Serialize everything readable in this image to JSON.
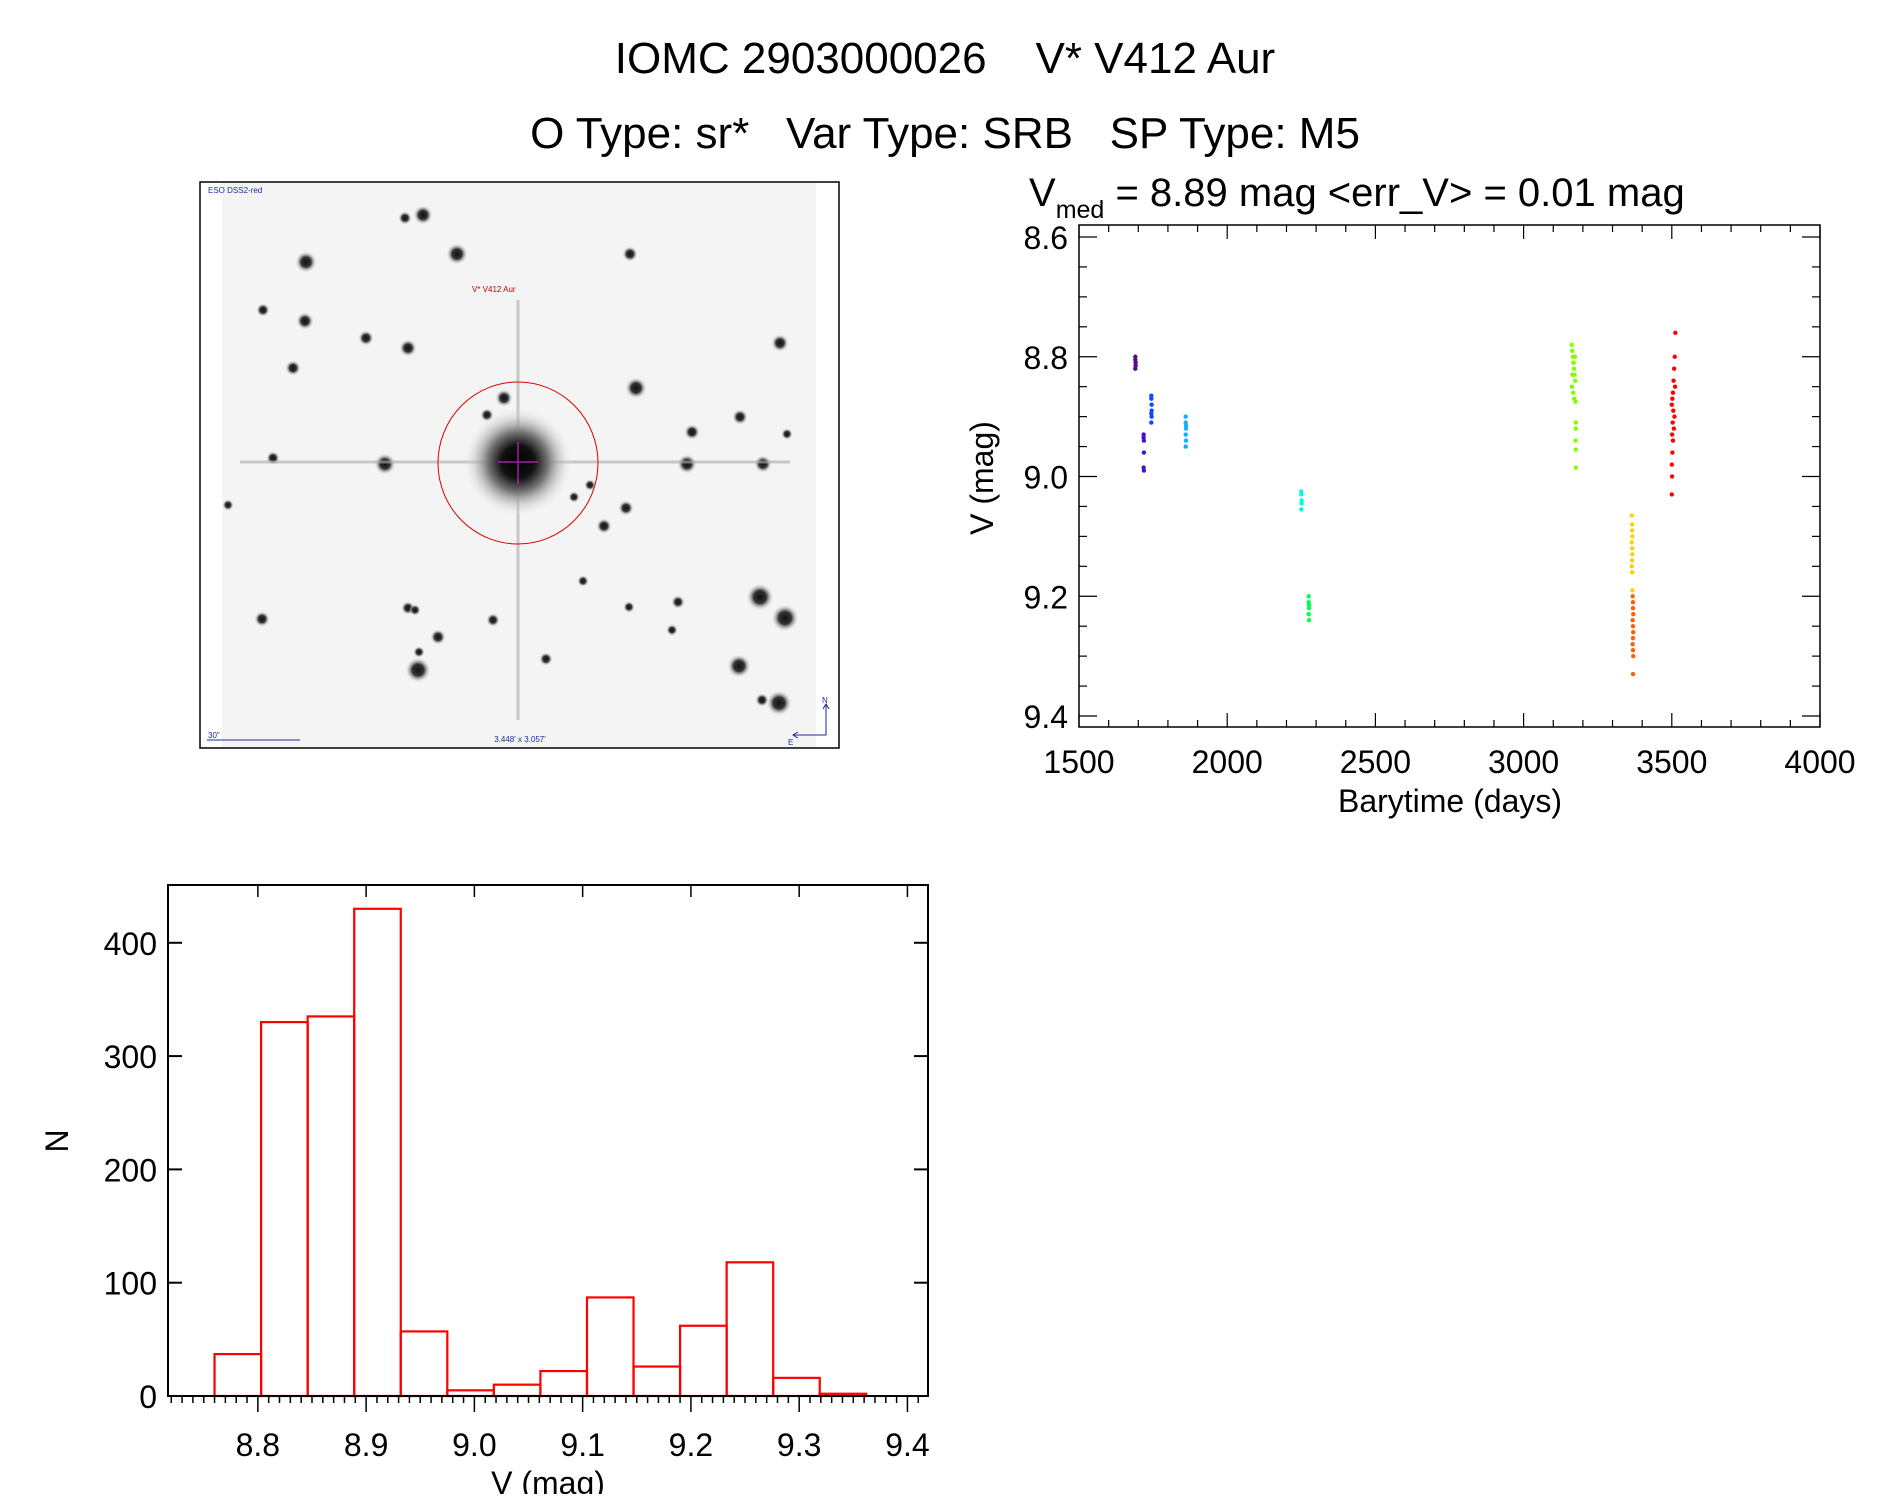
{
  "header": {
    "title_line1": "IOMC 2903000026    V* V412 Aur",
    "title_line2": "O Type: sr*   Var Type: SRB   SP Type: M5"
  },
  "image_panel": {
    "survey_label": "ESO DSS2-red",
    "target_label": "V* V412 Aur",
    "scale_label": "30\"",
    "field_size_label": "3.448' x 3.057'",
    "north_label": "N",
    "east_label": "E"
  },
  "chart_data": [
    {
      "type": "scatter",
      "title_prefix": "V",
      "title_subscript": "med",
      "title_rest": " = 8.89 mag <err_V> = 0.01 mag",
      "xlabel": "Barytime (days)",
      "ylabel": "V (mag)",
      "xlim": [
        1500,
        4000
      ],
      "ylim": [
        8.6,
        9.4
      ],
      "y_inverted": true,
      "xticks": [
        "1500",
        "2000",
        "2500",
        "3000",
        "3500",
        "4000"
      ],
      "yticks": [
        "8.6",
        "8.8",
        "9.0",
        "9.2",
        "9.4"
      ],
      "grid": false,
      "series": [
        {
          "color": "#5a0a82",
          "x": [
            1690,
            1690,
            1691,
            1691,
            1690
          ],
          "y": [
            8.8,
            8.805,
            8.81,
            8.815,
            8.82
          ]
        },
        {
          "color": "#4a10d0",
          "x": [
            1718,
            1718,
            1719,
            1719,
            1718,
            1719
          ],
          "y": [
            8.93,
            8.935,
            8.94,
            8.96,
            8.985,
            8.99
          ]
        },
        {
          "color": "#1048ff",
          "x": [
            1744,
            1744,
            1745,
            1745,
            1744,
            1745,
            1744
          ],
          "y": [
            8.865,
            8.87,
            8.88,
            8.89,
            8.895,
            8.9,
            8.91
          ]
        },
        {
          "color": "#10b0ff",
          "x": [
            1860,
            1860,
            1861,
            1861,
            1860,
            1861,
            1860
          ],
          "y": [
            8.9,
            8.91,
            8.915,
            8.92,
            8.93,
            8.94,
            8.95
          ]
        },
        {
          "color": "#00ffd8",
          "x": [
            2250,
            2250,
            2251,
            2251,
            2250
          ],
          "y": [
            9.025,
            9.03,
            9.04,
            9.045,
            9.055
          ]
        },
        {
          "color": "#00ff50",
          "x": [
            2275,
            2275,
            2276,
            2276,
            2275,
            2276
          ],
          "y": [
            9.2,
            9.21,
            9.215,
            9.22,
            9.23,
            9.24
          ]
        },
        {
          "color": "#80ff00",
          "x": [
            3162,
            3164,
            3166,
            3168,
            3170,
            3172,
            3174,
            3163,
            3167,
            3171,
            3175,
            3165,
            3169,
            3173,
            3176,
            3176,
            3175,
            3176,
            3176
          ],
          "y": [
            8.78,
            8.79,
            8.8,
            8.81,
            8.82,
            8.83,
            8.84,
            8.85,
            8.86,
            8.87,
            8.875,
            8.83,
            8.81,
            8.8,
            8.91,
            8.92,
            8.94,
            8.955,
            8.985
          ]
        },
        {
          "color": "#ffd000",
          "x": [
            3365,
            3366,
            3366,
            3367,
            3365,
            3366,
            3367,
            3366,
            3365,
            3366,
            3367
          ],
          "y": [
            9.065,
            9.08,
            9.09,
            9.1,
            9.11,
            9.12,
            9.13,
            9.14,
            9.15,
            9.16,
            9.19
          ]
        },
        {
          "color": "#ff6000",
          "x": [
            3368,
            3369,
            3369,
            3370,
            3368,
            3369,
            3370,
            3369,
            3368,
            3369,
            3370,
            3369
          ],
          "y": [
            9.2,
            9.21,
            9.22,
            9.23,
            9.24,
            9.25,
            9.26,
            9.27,
            9.28,
            9.29,
            9.3,
            9.33
          ]
        },
        {
          "color": "#ff0000",
          "x": [
            3512,
            3510,
            3508,
            3506,
            3504,
            3502,
            3500,
            3505,
            3509,
            3503,
            3507,
            3511,
            3501,
            3504,
            3502,
            3500,
            3501,
            3500
          ],
          "y": [
            8.76,
            8.8,
            8.82,
            8.84,
            8.86,
            8.87,
            8.88,
            8.89,
            8.9,
            8.91,
            8.92,
            8.85,
            8.93,
            8.94,
            8.96,
            8.98,
            9.0,
            9.03
          ]
        }
      ]
    },
    {
      "type": "bar",
      "style": "histogram-step",
      "xlabel": "V (mag)",
      "ylabel": "N",
      "xlim": [
        8.717,
        9.419
      ],
      "ylim": [
        0,
        451
      ],
      "xticks": [
        "8.8",
        "8.9",
        "9.0",
        "9.1",
        "9.2",
        "9.3",
        "9.4"
      ],
      "yticks": [
        "0",
        "100",
        "200",
        "300",
        "400"
      ],
      "bin_start": 8.76,
      "bin_width": 0.043,
      "values": [
        37,
        330,
        335,
        430,
        57,
        5,
        10,
        22,
        87,
        26,
        62,
        118,
        16,
        2
      ],
      "color": "#ff0000",
      "grid": false
    }
  ]
}
